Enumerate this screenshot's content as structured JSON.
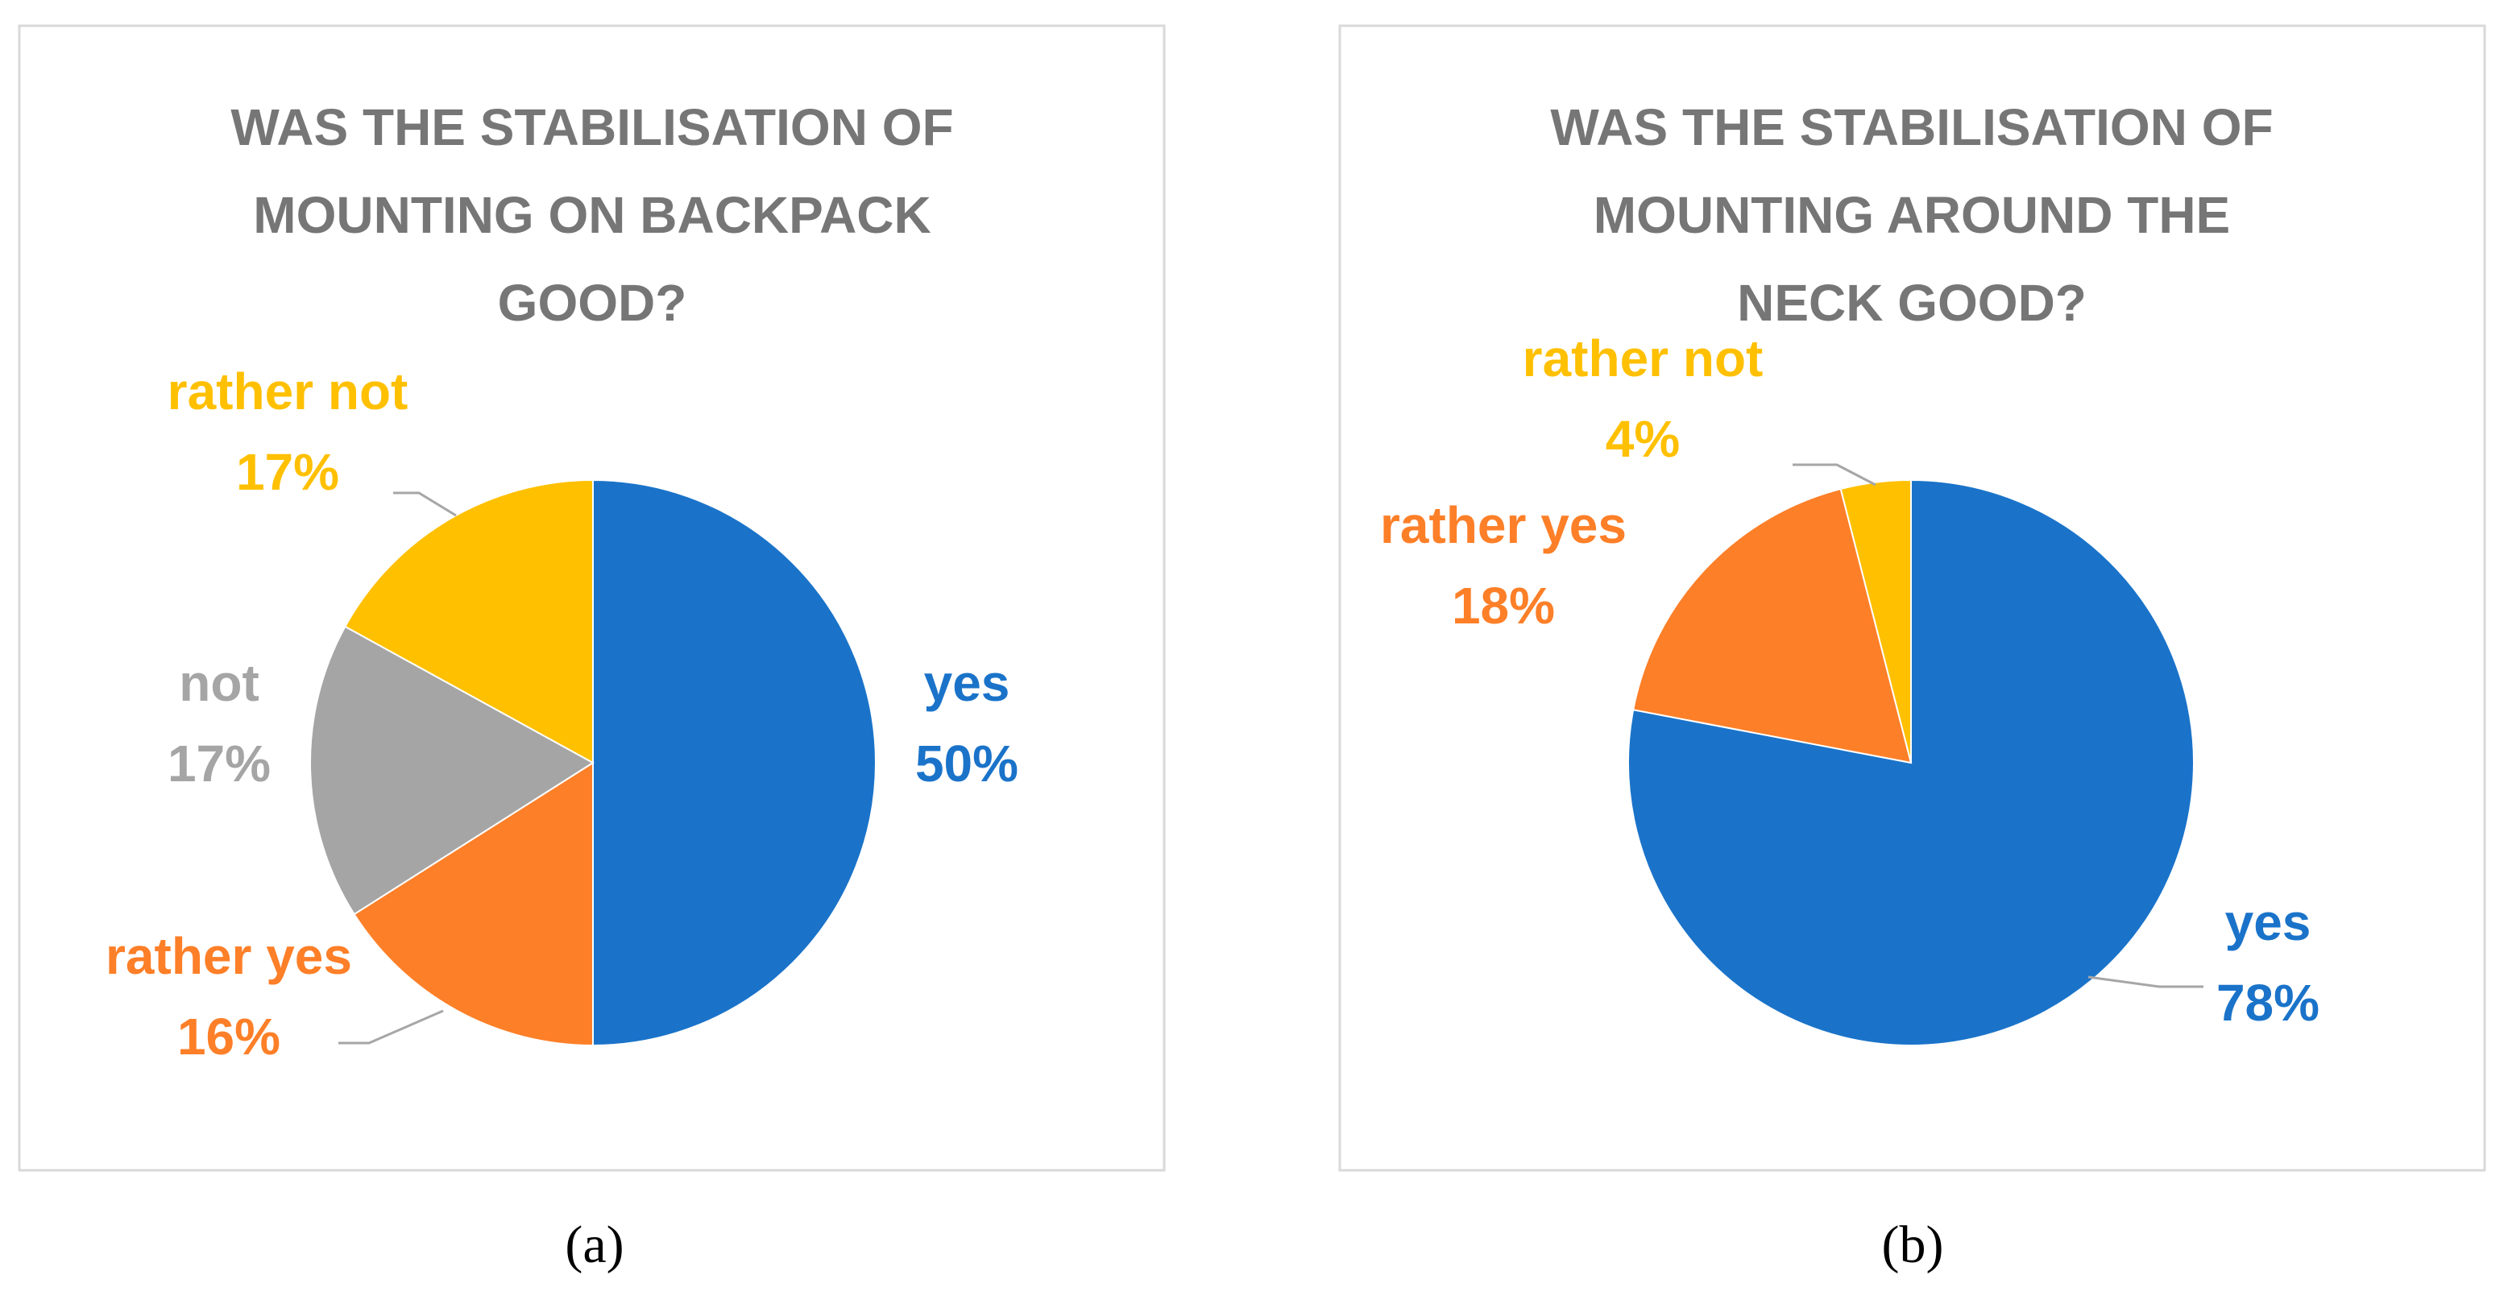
{
  "chart_data": [
    {
      "type": "pie",
      "title": "WAS THE STABILISATION OF MOUNTING ON BACKPACK GOOD?",
      "caption": "(a)",
      "categories": [
        "yes",
        "rather yes",
        "not",
        "rather not"
      ],
      "values": [
        50,
        16,
        17,
        17
      ],
      "value_labels": [
        "50%",
        "16%",
        "17%",
        "17%"
      ],
      "colors": [
        "#1a73c9",
        "#fd7f28",
        "#a5a5a5",
        "#ffc000"
      ]
    },
    {
      "type": "pie",
      "title": "WAS THE STABILISATION OF MOUNTING AROUND THE NECK GOOD?",
      "caption": "(b)",
      "categories": [
        "yes",
        "rather yes",
        "rather not"
      ],
      "values": [
        78,
        18,
        4
      ],
      "value_labels": [
        "78%",
        "18%",
        "4%"
      ],
      "colors": [
        "#1a73c9",
        "#fd7f28",
        "#ffc000"
      ]
    }
  ]
}
